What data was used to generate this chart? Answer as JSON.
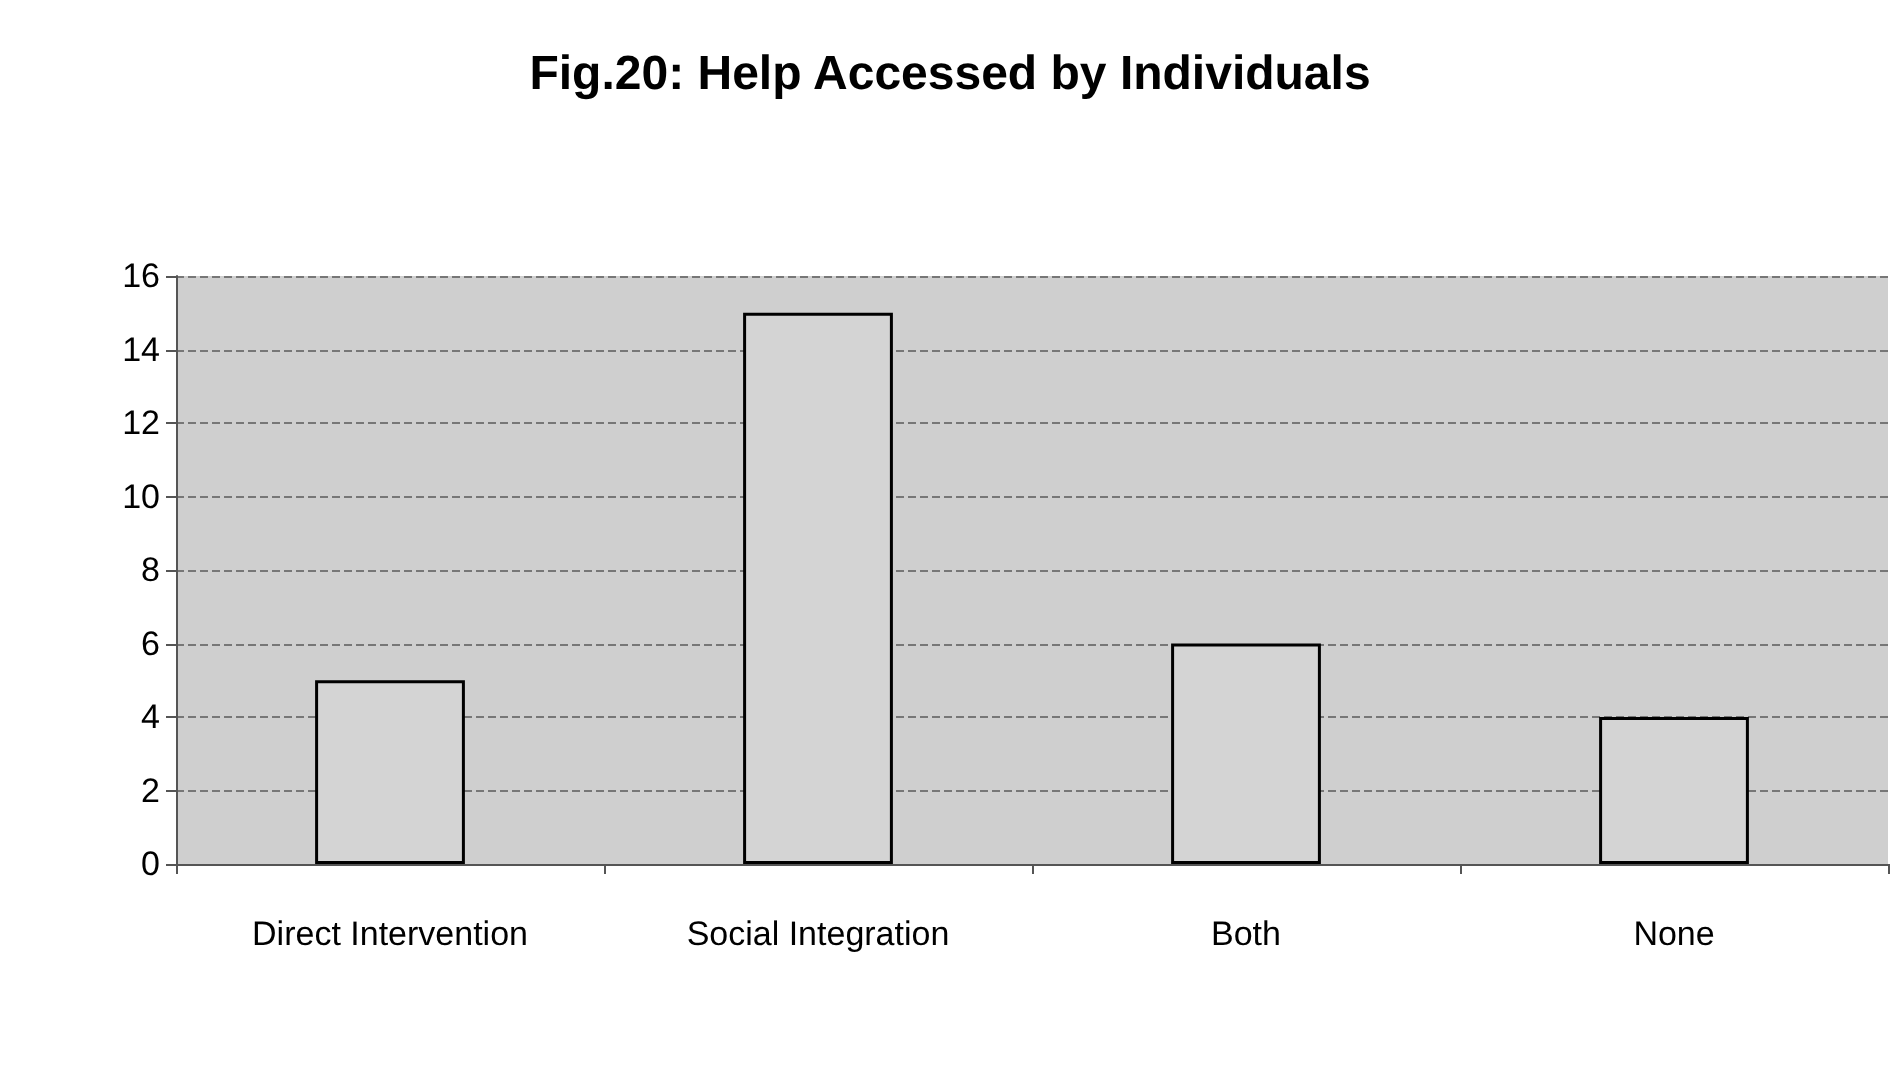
{
  "chart_data": {
    "type": "bar",
    "title": "Fig.20: Help Accessed by Individuals",
    "categories": [
      "Direct Intervention",
      "Social Integration",
      "Both",
      "None"
    ],
    "values": [
      5,
      15,
      6,
      4
    ],
    "color": "#d4d4d4",
    "ylim": [
      0,
      16
    ],
    "yticks": [
      0,
      2,
      4,
      6,
      8,
      10,
      12,
      14,
      16
    ],
    "grid": true
  }
}
